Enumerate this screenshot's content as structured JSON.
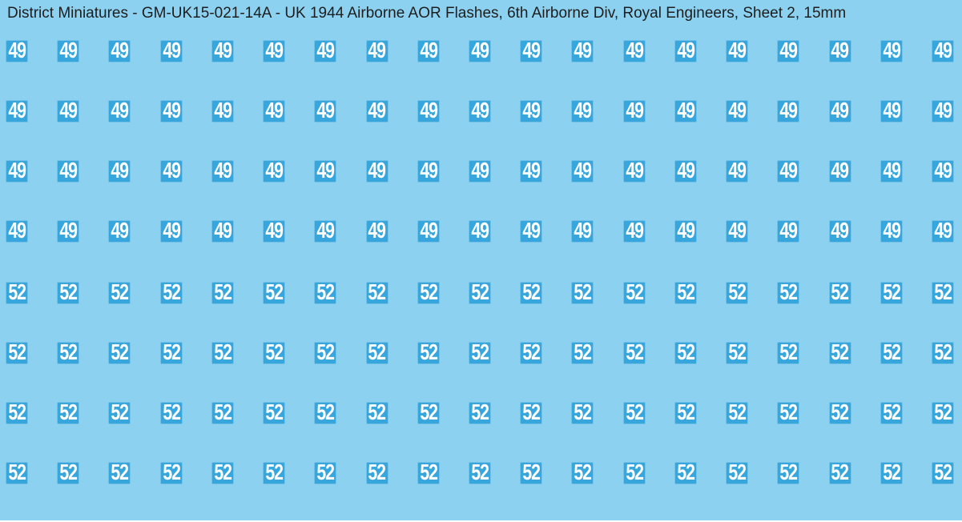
{
  "title": "District Miniatures - GM-UK15-021-14A - UK 1944 Airborne AOR Flashes, 6th Airborne Div, Royal Engineers, Sheet 2, 15mm",
  "colors": {
    "background": "#8DD1F1",
    "chip": "#37A6DC",
    "chip_text": "#FFFFFF",
    "title_text": "#1E1E1E"
  },
  "grid": {
    "columns": 19,
    "row_tops": [
      50,
      125,
      200,
      275,
      352,
      427,
      502,
      577
    ],
    "rows": [
      {
        "label": "49"
      },
      {
        "label": "49"
      },
      {
        "label": "49"
      },
      {
        "label": "49"
      },
      {
        "label": "52"
      },
      {
        "label": "52"
      },
      {
        "label": "52"
      },
      {
        "label": "52"
      }
    ]
  }
}
